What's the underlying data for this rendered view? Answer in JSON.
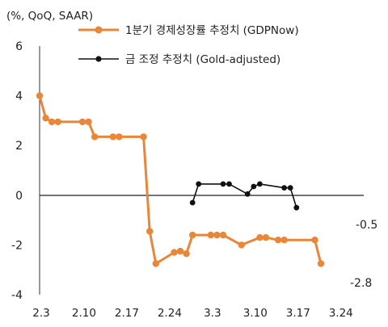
{
  "chart_data": {
    "type": "line",
    "ylabel": "(%, QoQ, SAAR)",
    "ylim": [
      -4,
      6
    ],
    "y_ticks": [
      6,
      4,
      2,
      0,
      -2,
      -4
    ],
    "x_tick_labels": [
      "2.3",
      "2.10",
      "2.17",
      "2.24",
      "3.3",
      "3.10",
      "3.17",
      "3.24"
    ],
    "x_ticks_at_day": [
      0,
      7,
      14,
      21,
      28,
      35,
      42,
      49
    ],
    "x_axis_note": "x values are days counted from 2.3",
    "legend_position": "top-right",
    "series": [
      {
        "name": "1분기 경제성장률 추정치 (GDPNow)",
        "color": "#E8873A",
        "x": [
          0,
          1,
          2,
          3,
          7,
          8,
          9,
          12,
          13,
          17,
          18,
          19,
          22,
          23,
          24,
          25,
          28,
          29,
          30,
          33,
          36,
          37,
          39,
          40,
          45,
          46
        ],
        "y": [
          4.0,
          3.1,
          2.95,
          2.95,
          2.95,
          2.95,
          2.35,
          2.35,
          2.35,
          2.35,
          -1.45,
          -2.75,
          -2.3,
          -2.25,
          -2.35,
          -1.6,
          -1.6,
          -1.6,
          -1.6,
          -2.0,
          -1.7,
          -1.7,
          -1.8,
          -1.8,
          -1.8,
          -2.75
        ]
      },
      {
        "name": "금 조정 추정치 (Gold-adjusted)",
        "color": "#111111",
        "x": [
          25,
          26,
          30,
          31,
          34,
          35,
          36,
          40,
          41,
          42
        ],
        "y": [
          -0.3,
          0.45,
          0.45,
          0.45,
          0.05,
          0.35,
          0.45,
          0.3,
          0.3,
          -0.5
        ]
      }
    ],
    "annotations": [
      "-0.5",
      "-2.8"
    ]
  }
}
